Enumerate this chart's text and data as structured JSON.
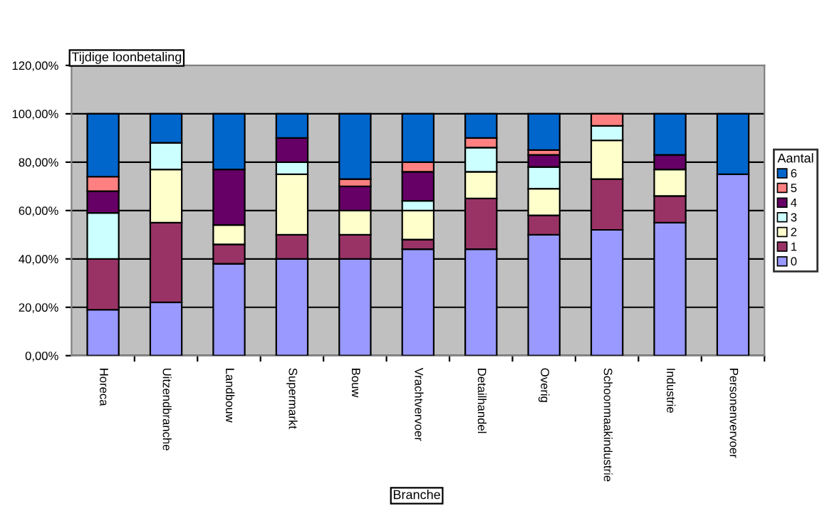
{
  "chart_data": {
    "type": "bar",
    "stacked": true,
    "title": "Tijdige loonbetaling",
    "xlabel": "Branche",
    "legend_title": "Aantal",
    "legend": "right",
    "grid": "y",
    "categories": [
      "Horeca",
      "Uitzendbranche",
      "Landbouw",
      "Supermarkt",
      "Bouw",
      "Vrachtvervoer",
      "Detailhandel",
      "Overig",
      "Schoonmaakindustrie",
      "Industrie",
      "Personenvervoer"
    ],
    "series": [
      {
        "name": "0",
        "color": "#9999ff",
        "values": [
          19,
          22,
          38,
          40,
          40,
          44,
          44,
          50,
          52,
          55,
          75
        ]
      },
      {
        "name": "1",
        "color": "#993366",
        "values": [
          21,
          33,
          8,
          10,
          10,
          4,
          21,
          8,
          21,
          11,
          0
        ]
      },
      {
        "name": "2",
        "color": "#ffffcc",
        "values": [
          0,
          22,
          8,
          25,
          10,
          12,
          11,
          11,
          16,
          11,
          0
        ]
      },
      {
        "name": "3",
        "color": "#ccffff",
        "values": [
          19,
          11,
          0,
          5,
          0,
          4,
          10,
          9,
          6,
          0,
          0
        ]
      },
      {
        "name": "4",
        "color": "#660066",
        "values": [
          9,
          0,
          23,
          10,
          10,
          12,
          0,
          5,
          0,
          6,
          0
        ]
      },
      {
        "name": "5",
        "color": "#ff8080",
        "values": [
          6,
          0,
          0,
          0,
          3,
          4,
          4,
          2,
          5,
          0,
          0
        ]
      },
      {
        "name": "6",
        "color": "#0066cc",
        "values": [
          26,
          12,
          23,
          10,
          27,
          20,
          10,
          15,
          0,
          17,
          25
        ]
      }
    ],
    "ylim": [
      0,
      120
    ],
    "yticks": [
      {
        "value": 0,
        "label": "0,00%"
      },
      {
        "value": 20,
        "label": "20,00%"
      },
      {
        "value": 40,
        "label": "40,00%"
      },
      {
        "value": 60,
        "label": "60,00%"
      },
      {
        "value": 80,
        "label": "80,00%"
      },
      {
        "value": 100,
        "label": "100,00%"
      },
      {
        "value": 120,
        "label": "120,00%"
      }
    ]
  }
}
